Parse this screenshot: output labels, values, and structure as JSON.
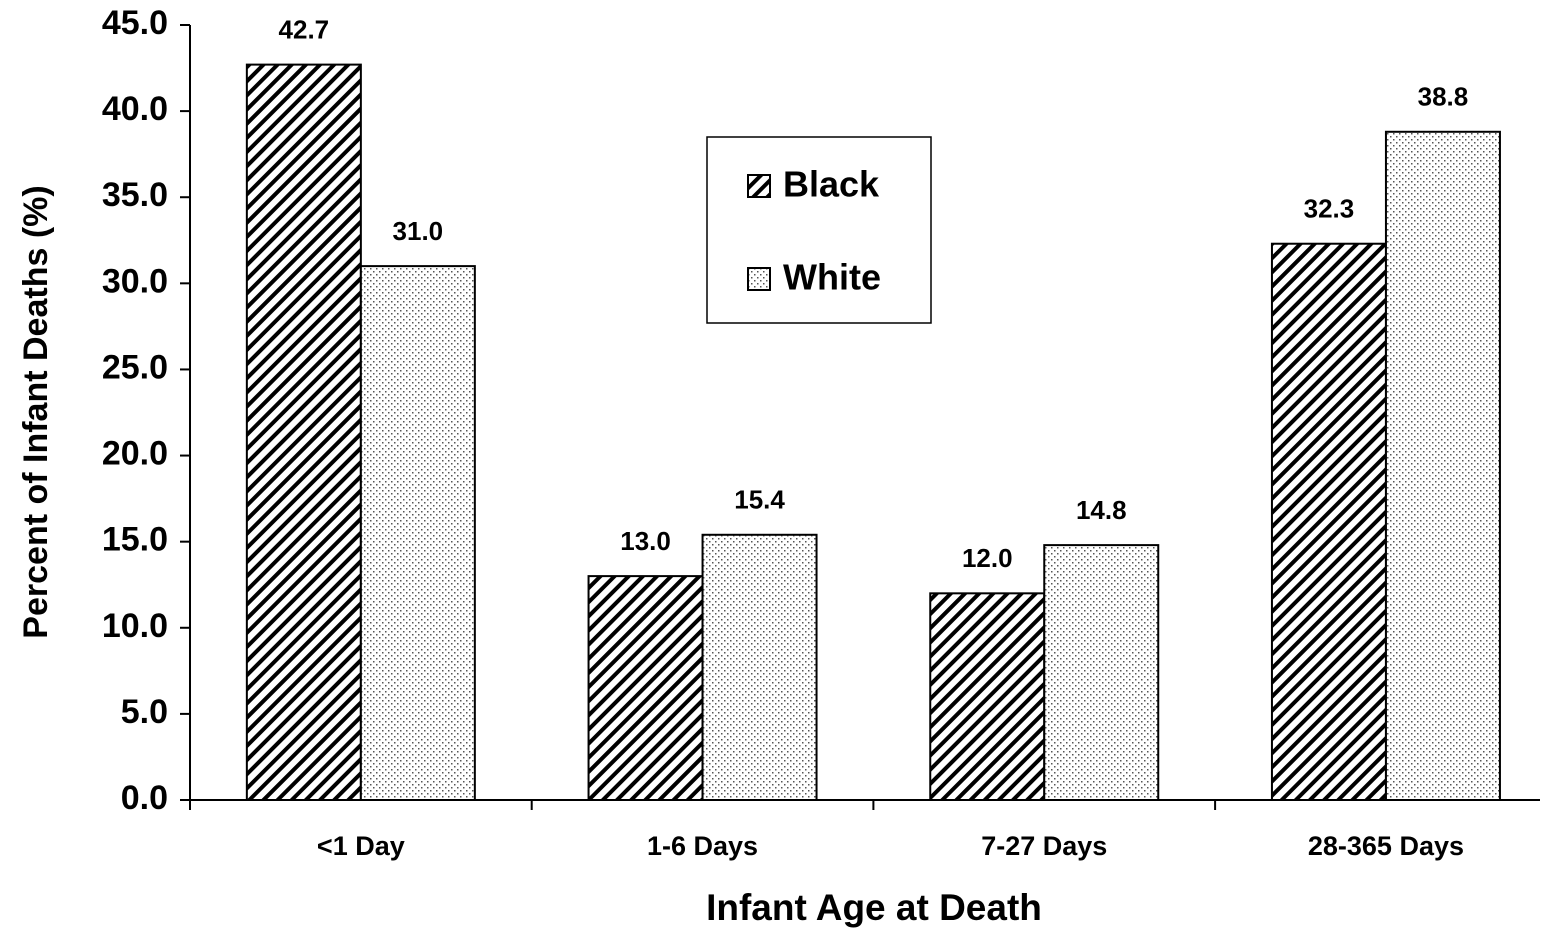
{
  "chart_data": {
    "type": "bar",
    "x_label": "Infant Age at Death",
    "y_label": "Percent of Infant Deaths (%)",
    "categories": [
      "<1 Day",
      "1-6 Days",
      "7-27 Days",
      "28-365 Days"
    ],
    "series": [
      {
        "name": "Black",
        "color": "#000000",
        "pattern": "hatch",
        "values": [
          42.7,
          13.0,
          12.0,
          32.3
        ],
        "value_labels": [
          "42.7",
          "13.0",
          "12.0",
          "32.3"
        ]
      },
      {
        "name": "White",
        "color": "#000000",
        "pattern": "dots",
        "values": [
          31.0,
          15.4,
          14.8,
          38.8
        ],
        "value_labels": [
          "31.0",
          "15.4",
          "14.8",
          "38.8"
        ]
      }
    ],
    "ylim": [
      0,
      45
    ],
    "yticks": [
      {
        "value": 0,
        "label": "0.0"
      },
      {
        "value": 5,
        "label": "5.0"
      },
      {
        "value": 10,
        "label": "10.0"
      },
      {
        "value": 15,
        "label": "15.0"
      },
      {
        "value": 20,
        "label": "20.0"
      },
      {
        "value": 25,
        "label": "25.0"
      },
      {
        "value": 30,
        "label": "30.0"
      },
      {
        "value": 35,
        "label": "35.0"
      },
      {
        "value": 40,
        "label": "40.0"
      },
      {
        "value": 45,
        "label": "45.0"
      }
    ],
    "grid": false,
    "legend": "top-center"
  }
}
